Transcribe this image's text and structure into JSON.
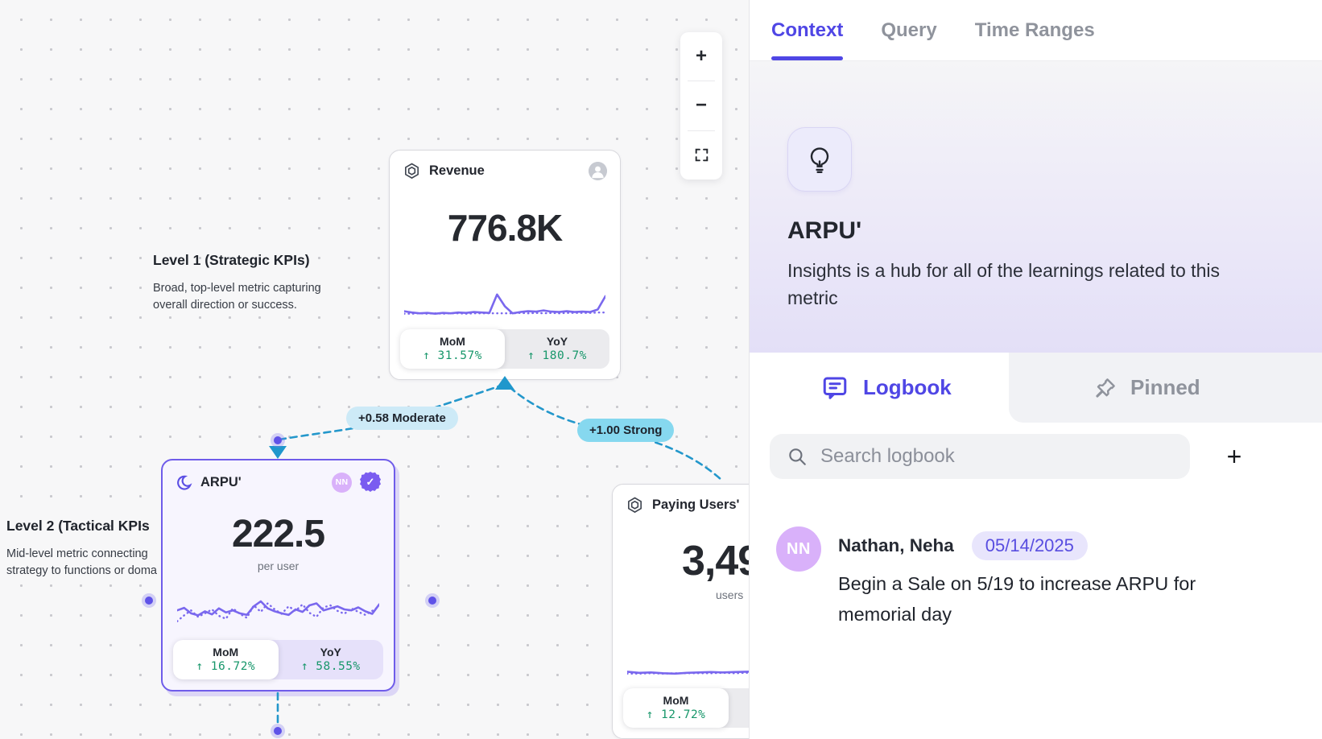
{
  "colors": {
    "accent_indigo": "#4f46e5",
    "spark_purple": "#7a68ee",
    "edge_blue": "#2397cb",
    "positive_green": "#18976b",
    "selected_border": "#6f5cea"
  },
  "canvas": {
    "levels": [
      {
        "title": "Level 1 (Strategic KPIs)",
        "desc": "Broad, top-level metric capturing overall direction or success."
      },
      {
        "title": "Level 2 (Tactical KPIs",
        "desc": "Mid-level metric connecting strategy to functions or doma"
      }
    ],
    "edges": [
      {
        "label": "+0.58 Moderate"
      },
      {
        "label": "+1.00 Strong"
      }
    ],
    "cards": [
      {
        "title": "Revenue",
        "value": "776.8K",
        "mom_label": "MoM",
        "mom": "↑ 31.57%",
        "yoy_label": "YoY",
        "yoy": "↑ 180.7%",
        "sparkline": {
          "solid": [
            20,
            17,
            15,
            16,
            14,
            16,
            15,
            17,
            16,
            18,
            17,
            16,
            60,
            32,
            15,
            18,
            20,
            19,
            22,
            19,
            18,
            20,
            18,
            19,
            18,
            24,
            56
          ],
          "dotted": [
            14,
            14,
            15,
            14,
            15,
            14,
            15,
            15,
            14,
            15,
            15,
            15,
            15,
            15,
            15,
            16,
            15,
            16,
            15,
            16,
            15,
            16,
            16,
            16,
            16,
            17,
            17
          ]
        }
      },
      {
        "title": "ARPU'",
        "value": "222.5",
        "unit": "per user",
        "avatar": "NN",
        "verified_check": "✓",
        "mom_label": "MoM",
        "mom": "↑ 16.72%",
        "yoy_label": "YoY",
        "yoy": "↑ 58.55%",
        "sparkline": {
          "solid": [
            40,
            45,
            34,
            30,
            38,
            32,
            44,
            36,
            40,
            34,
            31,
            48,
            58,
            44,
            38,
            34,
            31,
            42,
            37,
            50,
            54,
            40,
            44,
            48,
            42,
            40,
            46,
            38,
            33,
            52
          ],
          "dotted": [
            18,
            30,
            40,
            27,
            34,
            42,
            29,
            23,
            44,
            33,
            25,
            50,
            37,
            54,
            42,
            33,
            48,
            39,
            52,
            35,
            27,
            46,
            50,
            39,
            33,
            44,
            37,
            31,
            39,
            48
          ]
        }
      },
      {
        "title": "Paying Users'",
        "value": "3,49",
        "unit": "users",
        "mom_label": "MoM",
        "mom": "↑ 12.72%",
        "sparkline": {
          "solid": [
            18,
            15,
            16,
            14,
            13,
            15,
            16,
            17,
            16,
            17,
            18,
            19,
            17,
            21,
            62,
            26,
            15,
            18
          ],
          "dotted": [
            13,
            13,
            14,
            13,
            14,
            14,
            14,
            14,
            15,
            14,
            15,
            15,
            15,
            15,
            15,
            14,
            14,
            14
          ]
        }
      }
    ],
    "zoom_controls": {
      "zoom_in": "+",
      "zoom_out": "−"
    }
  },
  "panel": {
    "tabs": [
      {
        "label": "Context"
      },
      {
        "label": "Query"
      },
      {
        "label": "Time Ranges"
      }
    ],
    "hero": {
      "title": "ARPU'",
      "description": "Insights is a hub for all of the learnings related to this metric"
    },
    "sections": {
      "logbook": "Logbook",
      "pinned": "Pinned"
    },
    "search": {
      "placeholder": "Search logbook"
    },
    "add_button": "+",
    "entries": [
      {
        "avatar": "NN",
        "author": "Nathan, Neha",
        "date": "05/14/2025",
        "text": "Begin a Sale on 5/19 to increase ARPU for memorial day"
      }
    ]
  }
}
